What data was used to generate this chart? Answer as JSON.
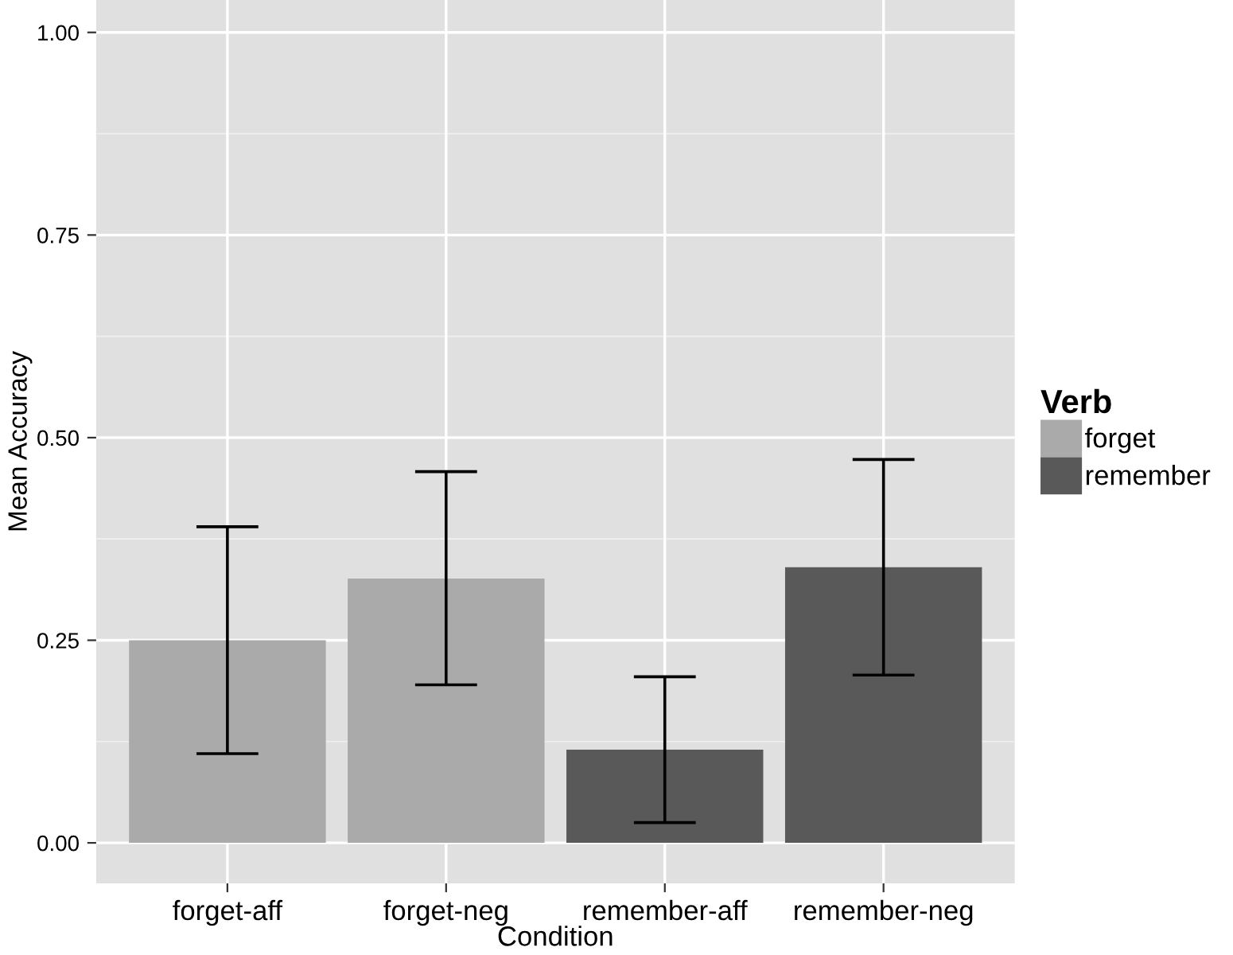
{
  "chart_data": {
    "type": "bar",
    "xlabel": "Condition",
    "ylabel": "Mean Accuracy",
    "legend_title": "Verb",
    "categories": [
      "forget-aff",
      "forget-neg",
      "remember-aff",
      "remember-neg"
    ],
    "series": [
      {
        "name": "forget",
        "color": "#aaaaaa",
        "values": [
          0.25,
          0.326,
          null,
          null
        ],
        "errors": [
          [
            0.11,
            0.39
          ],
          [
            0.195,
            0.458
          ],
          null,
          null
        ]
      },
      {
        "name": "remember",
        "color": "#595959",
        "values": [
          null,
          null,
          0.115,
          0.34
        ],
        "errors": [
          null,
          null,
          [
            0.025,
            0.205
          ],
          [
            0.207,
            0.473
          ]
        ]
      }
    ],
    "ylim": [
      -0.05,
      1.04
    ],
    "yticks": [
      {
        "value": 0,
        "label": "0.00"
      },
      {
        "value": 0.25,
        "label": "0.25"
      },
      {
        "value": 0.5,
        "label": "0.50"
      },
      {
        "value": 0.75,
        "label": "0.75"
      },
      {
        "value": 1,
        "label": "1.00"
      }
    ],
    "grid": true,
    "legend": "right"
  }
}
